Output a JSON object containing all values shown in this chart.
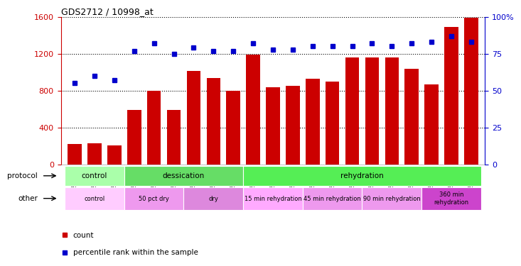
{
  "title": "GDS2712 / 10998_at",
  "samples": [
    "GSM21640",
    "GSM21641",
    "GSM21642",
    "GSM21643",
    "GSM21644",
    "GSM21645",
    "GSM21646",
    "GSM21647",
    "GSM21648",
    "GSM21649",
    "GSM21650",
    "GSM21651",
    "GSM21652",
    "GSM21653",
    "GSM21654",
    "GSM21655",
    "GSM21656",
    "GSM21657",
    "GSM21658",
    "GSM21659",
    "GSM21660"
  ],
  "counts": [
    220,
    230,
    210,
    590,
    800,
    590,
    1010,
    940,
    800,
    1190,
    840,
    850,
    930,
    895,
    1160,
    1160,
    1160,
    1040,
    870,
    1490,
    1590
  ],
  "percentiles": [
    55,
    60,
    57,
    77,
    82,
    75,
    79,
    77,
    77,
    82,
    78,
    78,
    80,
    80,
    80,
    82,
    80,
    82,
    83,
    87,
    83
  ],
  "bar_color": "#cc0000",
  "dot_color": "#0000cc",
  "ylim_left": [
    0,
    1600
  ],
  "ylim_right": [
    0,
    100
  ],
  "yticks_left": [
    0,
    400,
    800,
    1200,
    1600
  ],
  "yticks_right": [
    0,
    25,
    50,
    75,
    100
  ],
  "protocol_row": {
    "label": "protocol",
    "groups": [
      {
        "text": "control",
        "start": 0,
        "end": 3,
        "color": "#aaffaa"
      },
      {
        "text": "dessication",
        "start": 3,
        "end": 9,
        "color": "#66dd66"
      },
      {
        "text": "rehydration",
        "start": 9,
        "end": 21,
        "color": "#55ee55"
      }
    ]
  },
  "other_row": {
    "label": "other",
    "groups": [
      {
        "text": "control",
        "start": 0,
        "end": 3,
        "color": "#ffccff"
      },
      {
        "text": "50 pct dry",
        "start": 3,
        "end": 6,
        "color": "#ee99ee"
      },
      {
        "text": "dry",
        "start": 6,
        "end": 9,
        "color": "#dd88dd"
      },
      {
        "text": "15 min rehydration",
        "start": 9,
        "end": 12,
        "color": "#ffaaff"
      },
      {
        "text": "45 min rehydration",
        "start": 12,
        "end": 15,
        "color": "#ee99ee"
      },
      {
        "text": "90 min rehydration",
        "start": 15,
        "end": 18,
        "color": "#ee99ee"
      },
      {
        "text": "360 min\nrehydration",
        "start": 18,
        "end": 21,
        "color": "#cc44cc"
      }
    ]
  },
  "legend_items": [
    {
      "label": "count",
      "color": "#cc0000"
    },
    {
      "label": "percentile rank within the sample",
      "color": "#0000cc"
    }
  ],
  "background_color": "#ffffff"
}
